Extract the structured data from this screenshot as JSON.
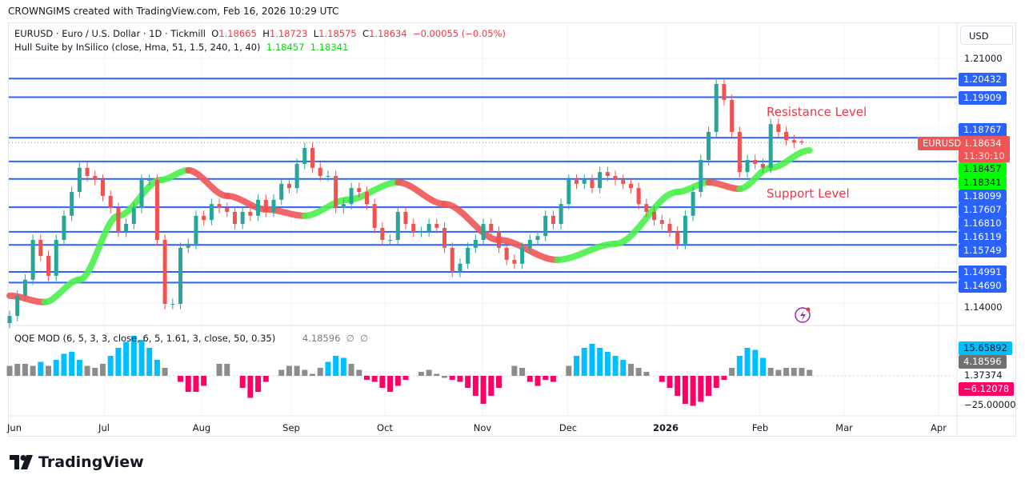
{
  "credit": "CROWNGIMS created with TradingView.com, Feb 16, 2026 10:29 UTC",
  "legend": {
    "symbol": "EURUSD · Euro / U.S. Dollar · 1D · Tickmill",
    "o_label": "O",
    "o": "1.18665",
    "h_label": "H",
    "h": "1.18723",
    "l_label": "L",
    "l": "1.18575",
    "c_label": "C",
    "c": "1.18634",
    "change": "−0.00055 (−0.05%)",
    "hull_name": "Hull Suite by InSilico (close, Hma, 51, 1.5, 240, 1, 40)",
    "hull_v1": "1.18457",
    "hull_v2": "1.18341",
    "qqe_name": "QQE MOD (6, 5, 3, 3, close, 6, 5, 1.61, 3, close, 50, 0.35)",
    "qqe_value": "4.18596",
    "qqe_na1": "∅",
    "qqe_na2": "∅"
  },
  "annotations": {
    "resistance": "Resistance Level",
    "support": "Support Level"
  },
  "price_axis": {
    "currency": "USD",
    "ticks": [
      "1.21000",
      "1.14000"
    ],
    "level_tags": [
      "1.20432",
      "1.19909",
      "1.18767",
      "1.18099",
      "1.17607",
      "1.16810",
      "1.16119",
      "1.15749",
      "1.14991",
      "1.14690"
    ],
    "symbol_tag": "EURUSD",
    "last_price": "1.18634",
    "countdown": "11:30:10",
    "hull_tags": [
      "1.18457",
      "1.18341"
    ]
  },
  "qqe_axis": {
    "tags": [
      "15.65892",
      "4.18596",
      "1.37374",
      "−6.12078",
      "−25.00000"
    ]
  },
  "time_axis": [
    "Jun",
    "Jul",
    "Aug",
    "Sep",
    "Oct",
    "Nov",
    "Dec",
    "2026",
    "Feb",
    "Mar",
    "Apr"
  ],
  "brand": "TradingView",
  "colors": {
    "up": "#26a69a",
    "down": "#ef5350",
    "level": "#2962ff",
    "hull_up": "#4cf04c",
    "hull_down": "#f05555",
    "qqe_blue": "#00bfff",
    "qqe_gray": "#8c8c8c",
    "qqe_pink": "#ff0066",
    "annotation": "#f23645"
  },
  "chart_data": [
    {
      "type": "candlestick",
      "symbol": "EURUSD",
      "interval": "1D",
      "ylim": [
        1.13,
        1.215
      ],
      "x_range": [
        "Jun 2025",
        "Apr 2026"
      ],
      "closes": [
        1.1375,
        1.1432,
        1.1477,
        1.1589,
        1.1544,
        1.1488,
        1.1589,
        1.1657,
        1.1724,
        1.1792,
        1.1769,
        1.1758,
        1.1713,
        1.1679,
        1.1612,
        1.1634,
        1.1679,
        1.1758,
        1.1758,
        1.1589,
        1.1409,
        1.1409,
        1.1567,
        1.1578,
        1.1657,
        1.1645,
        1.169,
        1.1679,
        1.1668,
        1.1634,
        1.1668,
        1.1657,
        1.1702,
        1.1668,
        1.1702,
        1.1747,
        1.1735,
        1.1803,
        1.1848,
        1.1792,
        1.1769,
        1.1769,
        1.1679,
        1.169,
        1.1735,
        1.1724,
        1.169,
        1.1623,
        1.1589,
        1.1589,
        1.1668,
        1.1634,
        1.1612,
        1.1612,
        1.1634,
        1.1623,
        1.1567,
        1.1499,
        1.1522,
        1.1567,
        1.1589,
        1.1634,
        1.1612,
        1.1567,
        1.1533,
        1.1522,
        1.1567,
        1.1589,
        1.16,
        1.1657,
        1.1634,
        1.169,
        1.1758,
        1.1747,
        1.1758,
        1.1735,
        1.178,
        1.1769,
        1.1758,
        1.1747,
        1.1735,
        1.169,
        1.1668,
        1.1645,
        1.1634,
        1.1612,
        1.1578,
        1.1657,
        1.1724,
        1.1814,
        1.1893,
        1.2028,
        1.1983,
        1.1893,
        1.178,
        1.1814,
        1.1803,
        1.1792,
        1.1915,
        1.1893,
        1.187,
        1.1863,
        1.18634
      ],
      "last": {
        "open": 1.18665,
        "high": 1.18723,
        "low": 1.18575,
        "close": 1.18634
      },
      "horizontal_levels": [
        1.20432,
        1.19909,
        1.18767,
        1.18099,
        1.17607,
        1.1681,
        1.16119,
        1.15749,
        1.14991,
        1.1469
      ],
      "hull_suite": [
        {
          "bar": 0,
          "value": 1.1432,
          "trend": "down"
        },
        {
          "bar": 4.5,
          "value": 1.1414,
          "trend": "up"
        },
        {
          "bar": 9,
          "value": 1.1477,
          "trend": "up"
        },
        {
          "bar": 14,
          "value": 1.1657,
          "trend": "up"
        },
        {
          "bar": 19.5,
          "value": 1.1758,
          "trend": "up"
        },
        {
          "bar": 23,
          "value": 1.1785,
          "trend": "down"
        },
        {
          "bar": 28,
          "value": 1.1713,
          "trend": "down"
        },
        {
          "bar": 33,
          "value": 1.1675,
          "trend": "down"
        },
        {
          "bar": 38,
          "value": 1.1657,
          "trend": "up"
        },
        {
          "bar": 43.5,
          "value": 1.1702,
          "trend": "up"
        },
        {
          "bar": 50,
          "value": 1.1751,
          "trend": "down"
        },
        {
          "bar": 56,
          "value": 1.169,
          "trend": "down"
        },
        {
          "bar": 63,
          "value": 1.1589,
          "trend": "down"
        },
        {
          "bar": 70.5,
          "value": 1.1533,
          "trend": "up"
        },
        {
          "bar": 78,
          "value": 1.1578,
          "trend": "up"
        },
        {
          "bar": 86,
          "value": 1.1724,
          "trend": "up"
        },
        {
          "bar": 90,
          "value": 1.1751,
          "trend": "down"
        },
        {
          "bar": 94,
          "value": 1.1733,
          "trend": "up"
        },
        {
          "bar": 98,
          "value": 1.1792,
          "trend": "up"
        },
        {
          "bar": 103,
          "value": 1.1841,
          "trend": "up"
        }
      ]
    },
    {
      "type": "bar",
      "name": "QQE MOD",
      "ylim": [
        -25,
        25
      ],
      "values": [
        5,
        6,
        6,
        5,
        7,
        5,
        8,
        11,
        12,
        8,
        5,
        4,
        6,
        10,
        14,
        17,
        20,
        18,
        14,
        8,
        4,
        0,
        -3,
        -8,
        -8,
        -5,
        0,
        6,
        6,
        0,
        -6,
        -11,
        -8,
        -3,
        0,
        3,
        5,
        5,
        3,
        1,
        4,
        7,
        10,
        9,
        6,
        3,
        -2,
        -3,
        -6,
        -8,
        -5,
        -2,
        0,
        2,
        3,
        1,
        -1,
        -2,
        -3,
        -6,
        -10,
        -14,
        -10,
        -6,
        0,
        5,
        4,
        -3,
        -5,
        -2,
        -3,
        0,
        5,
        10,
        14,
        16,
        14,
        12,
        10,
        8,
        6,
        4,
        2,
        0,
        -3,
        -6,
        -10,
        -14,
        -15,
        -13,
        -10,
        -6,
        -2,
        4,
        10,
        14,
        13,
        9,
        4,
        3,
        4,
        4,
        4,
        3
      ]
    }
  ]
}
